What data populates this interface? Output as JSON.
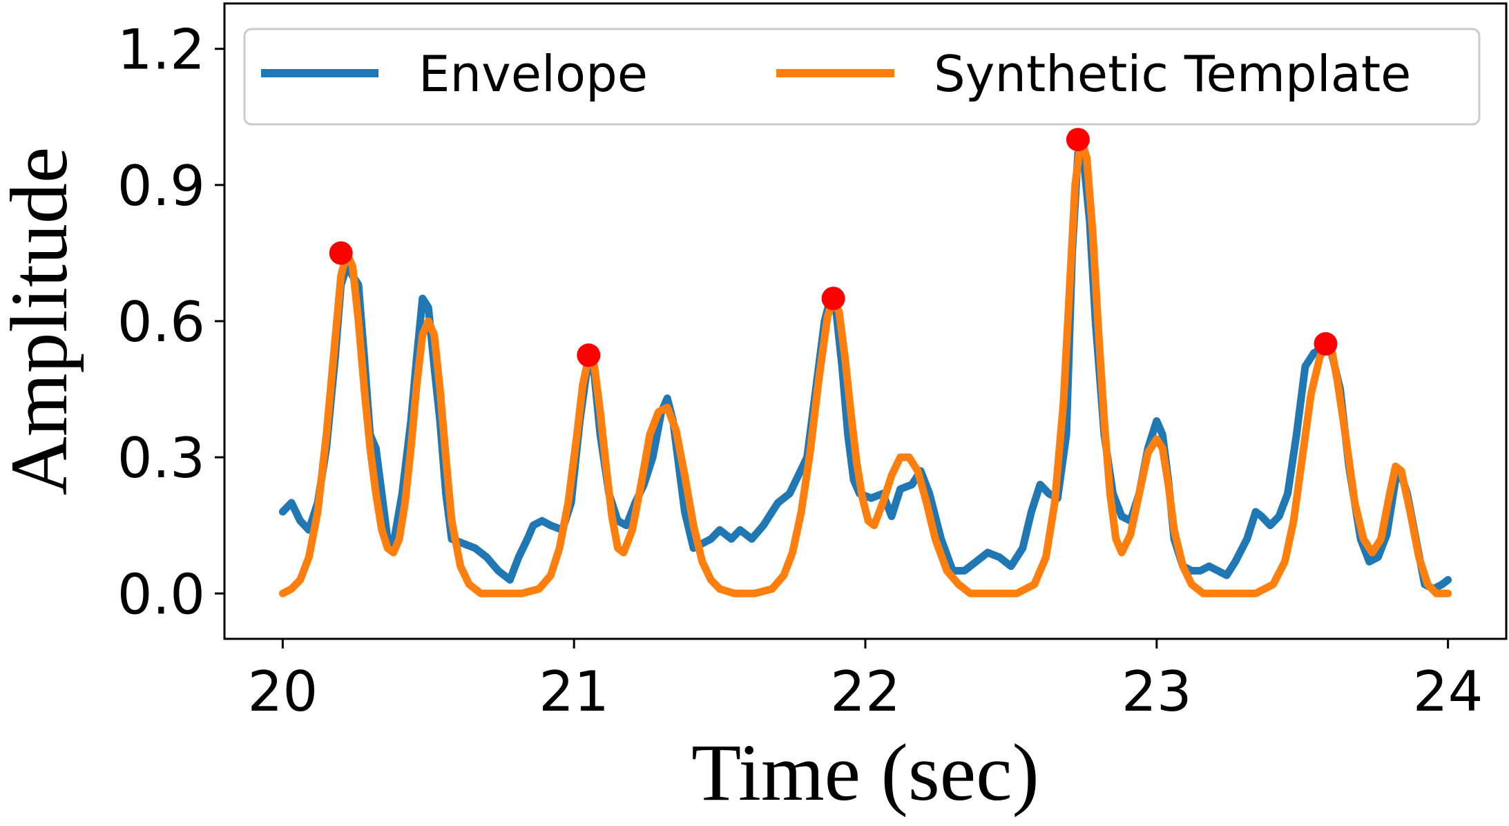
{
  "chart_data": {
    "type": "line",
    "title": "",
    "xlabel": "Time (sec)",
    "ylabel": "Amplitude",
    "xlim": [
      19.8,
      24.2
    ],
    "ylim": [
      -0.1,
      1.3
    ],
    "xticks": [
      20,
      21,
      22,
      23,
      24
    ],
    "xtick_labels": [
      "20",
      "21",
      "22",
      "23",
      "24"
    ],
    "yticks": [
      0.0,
      0.3,
      0.6,
      0.9,
      1.2
    ],
    "ytick_labels": [
      "0.0",
      "0.3",
      "0.6",
      "0.9",
      "1.2"
    ],
    "grid": false,
    "legend": {
      "placement": "top",
      "entries": [
        "Envelope",
        "Synthetic Template"
      ]
    },
    "series": [
      {
        "name": "Envelope",
        "color": "#1f77b4",
        "points": [
          [
            20.0,
            0.18
          ],
          [
            20.03,
            0.2
          ],
          [
            20.06,
            0.16
          ],
          [
            20.09,
            0.14
          ],
          [
            20.12,
            0.2
          ],
          [
            20.15,
            0.32
          ],
          [
            20.18,
            0.52
          ],
          [
            20.2,
            0.68
          ],
          [
            20.22,
            0.72
          ],
          [
            20.24,
            0.7
          ],
          [
            20.26,
            0.68
          ],
          [
            20.28,
            0.52
          ],
          [
            20.3,
            0.35
          ],
          [
            20.32,
            0.32
          ],
          [
            20.34,
            0.22
          ],
          [
            20.36,
            0.12
          ],
          [
            20.38,
            0.11
          ],
          [
            20.41,
            0.22
          ],
          [
            20.44,
            0.38
          ],
          [
            20.46,
            0.52
          ],
          [
            20.48,
            0.65
          ],
          [
            20.5,
            0.63
          ],
          [
            20.52,
            0.5
          ],
          [
            20.54,
            0.38
          ],
          [
            20.56,
            0.22
          ],
          [
            20.58,
            0.12
          ],
          [
            20.62,
            0.11
          ],
          [
            20.66,
            0.1
          ],
          [
            20.7,
            0.08
          ],
          [
            20.74,
            0.05
          ],
          [
            20.78,
            0.03
          ],
          [
            20.81,
            0.08
          ],
          [
            20.84,
            0.12
          ],
          [
            20.86,
            0.15
          ],
          [
            20.89,
            0.16
          ],
          [
            20.92,
            0.15
          ],
          [
            20.96,
            0.14
          ],
          [
            20.99,
            0.2
          ],
          [
            21.02,
            0.38
          ],
          [
            21.05,
            0.52
          ],
          [
            21.07,
            0.48
          ],
          [
            21.09,
            0.35
          ],
          [
            21.12,
            0.22
          ],
          [
            21.15,
            0.16
          ],
          [
            21.18,
            0.15
          ],
          [
            21.21,
            0.2
          ],
          [
            21.24,
            0.24
          ],
          [
            21.27,
            0.3
          ],
          [
            21.3,
            0.4
          ],
          [
            21.32,
            0.43
          ],
          [
            21.34,
            0.38
          ],
          [
            21.36,
            0.28
          ],
          [
            21.38,
            0.18
          ],
          [
            21.41,
            0.1
          ],
          [
            21.44,
            0.11
          ],
          [
            21.47,
            0.12
          ],
          [
            21.5,
            0.14
          ],
          [
            21.54,
            0.12
          ],
          [
            21.57,
            0.14
          ],
          [
            21.61,
            0.12
          ],
          [
            21.65,
            0.15
          ],
          [
            21.68,
            0.18
          ],
          [
            21.7,
            0.2
          ],
          [
            21.74,
            0.22
          ],
          [
            21.77,
            0.26
          ],
          [
            21.8,
            0.3
          ],
          [
            21.83,
            0.45
          ],
          [
            21.86,
            0.6
          ],
          [
            21.88,
            0.65
          ],
          [
            21.9,
            0.62
          ],
          [
            21.92,
            0.5
          ],
          [
            21.94,
            0.35
          ],
          [
            21.96,
            0.25
          ],
          [
            21.98,
            0.22
          ],
          [
            22.02,
            0.21
          ],
          [
            22.06,
            0.22
          ],
          [
            22.09,
            0.17
          ],
          [
            22.12,
            0.23
          ],
          [
            22.16,
            0.24
          ],
          [
            22.19,
            0.27
          ],
          [
            22.22,
            0.22
          ],
          [
            22.26,
            0.12
          ],
          [
            22.3,
            0.05
          ],
          [
            22.34,
            0.05
          ],
          [
            22.38,
            0.07
          ],
          [
            22.42,
            0.09
          ],
          [
            22.46,
            0.08
          ],
          [
            22.5,
            0.06
          ],
          [
            22.54,
            0.1
          ],
          [
            22.57,
            0.18
          ],
          [
            22.6,
            0.24
          ],
          [
            22.63,
            0.22
          ],
          [
            22.66,
            0.21
          ],
          [
            22.69,
            0.35
          ],
          [
            22.71,
            0.75
          ],
          [
            22.73,
            0.97
          ],
          [
            22.75,
            0.95
          ],
          [
            22.77,
            0.82
          ],
          [
            22.79,
            0.6
          ],
          [
            22.82,
            0.35
          ],
          [
            22.85,
            0.22
          ],
          [
            22.88,
            0.17
          ],
          [
            22.91,
            0.16
          ],
          [
            22.94,
            0.22
          ],
          [
            22.97,
            0.32
          ],
          [
            23.0,
            0.38
          ],
          [
            23.02,
            0.35
          ],
          [
            23.04,
            0.25
          ],
          [
            23.06,
            0.12
          ],
          [
            23.09,
            0.06
          ],
          [
            23.12,
            0.05
          ],
          [
            23.15,
            0.05
          ],
          [
            23.18,
            0.06
          ],
          [
            23.21,
            0.05
          ],
          [
            23.24,
            0.04
          ],
          [
            23.27,
            0.07
          ],
          [
            23.31,
            0.12
          ],
          [
            23.34,
            0.18
          ],
          [
            23.36,
            0.17
          ],
          [
            23.39,
            0.15
          ],
          [
            23.42,
            0.17
          ],
          [
            23.45,
            0.22
          ],
          [
            23.48,
            0.35
          ],
          [
            23.51,
            0.5
          ],
          [
            23.54,
            0.53
          ],
          [
            23.57,
            0.54
          ],
          [
            23.6,
            0.53
          ],
          [
            23.63,
            0.45
          ],
          [
            23.66,
            0.28
          ],
          [
            23.7,
            0.12
          ],
          [
            23.73,
            0.07
          ],
          [
            23.76,
            0.08
          ],
          [
            23.79,
            0.13
          ],
          [
            23.82,
            0.25
          ],
          [
            23.84,
            0.26
          ],
          [
            23.86,
            0.22
          ],
          [
            23.89,
            0.12
          ],
          [
            23.92,
            0.02
          ],
          [
            23.95,
            0.01
          ],
          [
            23.98,
            0.02
          ],
          [
            24.0,
            0.03
          ]
        ]
      },
      {
        "name": "Synthetic Template",
        "color": "#ff7f0e",
        "points": [
          [
            20.0,
            0.0
          ],
          [
            20.03,
            0.01
          ],
          [
            20.06,
            0.03
          ],
          [
            20.09,
            0.08
          ],
          [
            20.12,
            0.18
          ],
          [
            20.15,
            0.35
          ],
          [
            20.18,
            0.56
          ],
          [
            20.2,
            0.7
          ],
          [
            20.22,
            0.75
          ],
          [
            20.24,
            0.72
          ],
          [
            20.26,
            0.6
          ],
          [
            20.28,
            0.45
          ],
          [
            20.3,
            0.32
          ],
          [
            20.32,
            0.22
          ],
          [
            20.34,
            0.14
          ],
          [
            20.36,
            0.1
          ],
          [
            20.38,
            0.09
          ],
          [
            20.4,
            0.12
          ],
          [
            20.42,
            0.2
          ],
          [
            20.44,
            0.32
          ],
          [
            20.46,
            0.46
          ],
          [
            20.48,
            0.57
          ],
          [
            20.5,
            0.6
          ],
          [
            20.52,
            0.57
          ],
          [
            20.54,
            0.45
          ],
          [
            20.56,
            0.3
          ],
          [
            20.58,
            0.16
          ],
          [
            20.61,
            0.06
          ],
          [
            20.64,
            0.02
          ],
          [
            20.68,
            0.0
          ],
          [
            20.75,
            0.0
          ],
          [
            20.82,
            0.0
          ],
          [
            20.88,
            0.01
          ],
          [
            20.92,
            0.04
          ],
          [
            20.95,
            0.1
          ],
          [
            20.98,
            0.2
          ],
          [
            21.01,
            0.35
          ],
          [
            21.03,
            0.46
          ],
          [
            21.05,
            0.52
          ],
          [
            21.07,
            0.5
          ],
          [
            21.09,
            0.4
          ],
          [
            21.11,
            0.28
          ],
          [
            21.13,
            0.17
          ],
          [
            21.15,
            0.1
          ],
          [
            21.17,
            0.09
          ],
          [
            21.2,
            0.14
          ],
          [
            21.23,
            0.24
          ],
          [
            21.26,
            0.35
          ],
          [
            21.29,
            0.4
          ],
          [
            21.32,
            0.41
          ],
          [
            21.35,
            0.36
          ],
          [
            21.38,
            0.26
          ],
          [
            21.41,
            0.15
          ],
          [
            21.44,
            0.07
          ],
          [
            21.47,
            0.03
          ],
          [
            21.5,
            0.01
          ],
          [
            21.55,
            0.0
          ],
          [
            21.62,
            0.0
          ],
          [
            21.68,
            0.01
          ],
          [
            21.72,
            0.04
          ],
          [
            21.75,
            0.09
          ],
          [
            21.78,
            0.18
          ],
          [
            21.81,
            0.31
          ],
          [
            21.84,
            0.47
          ],
          [
            21.87,
            0.61
          ],
          [
            21.89,
            0.65
          ],
          [
            21.91,
            0.62
          ],
          [
            21.93,
            0.52
          ],
          [
            21.95,
            0.4
          ],
          [
            21.97,
            0.29
          ],
          [
            21.99,
            0.21
          ],
          [
            22.01,
            0.16
          ],
          [
            22.03,
            0.15
          ],
          [
            22.06,
            0.2
          ],
          [
            22.09,
            0.26
          ],
          [
            22.12,
            0.3
          ],
          [
            22.15,
            0.3
          ],
          [
            22.18,
            0.27
          ],
          [
            22.21,
            0.2
          ],
          [
            22.24,
            0.12
          ],
          [
            22.28,
            0.05
          ],
          [
            22.32,
            0.02
          ],
          [
            22.36,
            0.0
          ],
          [
            22.45,
            0.0
          ],
          [
            22.52,
            0.0
          ],
          [
            22.58,
            0.02
          ],
          [
            22.62,
            0.08
          ],
          [
            22.65,
            0.2
          ],
          [
            22.68,
            0.42
          ],
          [
            22.7,
            0.66
          ],
          [
            22.72,
            0.9
          ],
          [
            22.74,
            1.0
          ],
          [
            22.76,
            0.96
          ],
          [
            22.78,
            0.8
          ],
          [
            22.8,
            0.58
          ],
          [
            22.82,
            0.38
          ],
          [
            22.84,
            0.22
          ],
          [
            22.86,
            0.12
          ],
          [
            22.88,
            0.09
          ],
          [
            22.91,
            0.13
          ],
          [
            22.94,
            0.22
          ],
          [
            22.97,
            0.31
          ],
          [
            23.0,
            0.34
          ],
          [
            23.02,
            0.32
          ],
          [
            23.04,
            0.24
          ],
          [
            23.06,
            0.14
          ],
          [
            23.09,
            0.06
          ],
          [
            23.12,
            0.02
          ],
          [
            23.16,
            0.0
          ],
          [
            23.25,
            0.0
          ],
          [
            23.34,
            0.0
          ],
          [
            23.4,
            0.02
          ],
          [
            23.44,
            0.07
          ],
          [
            23.47,
            0.16
          ],
          [
            23.5,
            0.3
          ],
          [
            23.53,
            0.44
          ],
          [
            23.56,
            0.52
          ],
          [
            23.58,
            0.55
          ],
          [
            23.6,
            0.54
          ],
          [
            23.62,
            0.47
          ],
          [
            23.65,
            0.34
          ],
          [
            23.68,
            0.2
          ],
          [
            23.71,
            0.12
          ],
          [
            23.74,
            0.09
          ],
          [
            23.77,
            0.12
          ],
          [
            23.8,
            0.22
          ],
          [
            23.82,
            0.28
          ],
          [
            23.84,
            0.27
          ],
          [
            23.87,
            0.18
          ],
          [
            23.9,
            0.08
          ],
          [
            23.93,
            0.02
          ],
          [
            23.96,
            0.0
          ],
          [
            24.0,
            0.0
          ]
        ]
      }
    ],
    "markers": {
      "color": "#ff0000",
      "points": [
        [
          20.2,
          0.75
        ],
        [
          21.05,
          0.525
        ],
        [
          21.89,
          0.65
        ],
        [
          22.73,
          1.0
        ],
        [
          23.58,
          0.55
        ]
      ]
    }
  }
}
